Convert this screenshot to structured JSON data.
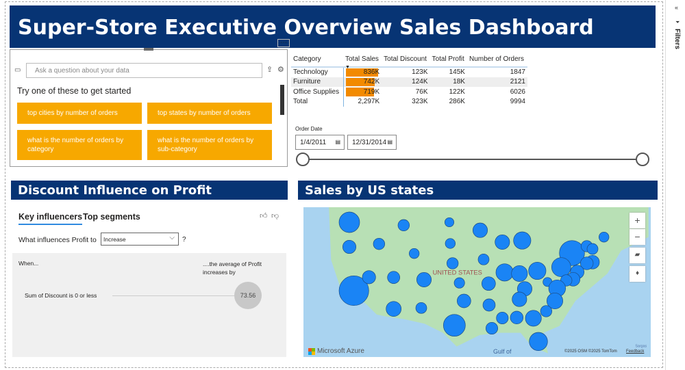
{
  "title": "Super-Store Executive Overview Sales Dashboard",
  "qna": {
    "placeholder": "Ask a question about your data",
    "prompt": "Try one of these to get started",
    "suggestions": [
      "top cities by number of orders",
      "top states by number of orders",
      "what is the number of orders by category",
      "what is the number of orders by sub-category"
    ]
  },
  "table": {
    "headers": [
      "Category",
      "Total Sales",
      "Total Discount",
      "Total Profit",
      "Number of Orders"
    ],
    "rows": [
      {
        "category": "Technology",
        "sales": "836K",
        "sales_value": 836,
        "discount": "123K",
        "profit": "145K",
        "orders": "1847"
      },
      {
        "category": "Furniture",
        "sales": "742K",
        "sales_value": 742,
        "discount": "124K",
        "profit": "18K",
        "orders": "2121"
      },
      {
        "category": "Office Supplies",
        "sales": "719K",
        "sales_value": 719,
        "discount": "76K",
        "profit": "122K",
        "orders": "6026"
      }
    ],
    "total": {
      "category": "Total",
      "sales": "2,297K",
      "discount": "323K",
      "profit": "286K",
      "orders": "9994"
    },
    "bar_color": "#f28a00"
  },
  "slicer": {
    "label": "Order Date",
    "start": "1/4/2011",
    "end": "12/31/2014"
  },
  "discount": {
    "title": "Discount Influence on Profit",
    "tabs": [
      "Key influencers",
      "Top segments"
    ],
    "question": "What influences Profit to",
    "dropdown": "Increase",
    "help": "?",
    "when": "When...",
    "avg": "....the average of Profit increases by",
    "factor": "Sum of Discount is 0 or less",
    "value": "73.56"
  },
  "map": {
    "title": "Sales by US states",
    "country_label": "UNITED STATES",
    "brand": "Microsoft Azure",
    "attribution": "©2025 OSM  ©2025 TomTom",
    "feedback": "Feedback",
    "gulf": "Gulf of",
    "sargasso": "Sargas",
    "bubble_color": "#1a84f5"
  },
  "filters": {
    "label": "Filters"
  },
  "colors": {
    "header": "#073474",
    "accent": "#f7a800"
  }
}
